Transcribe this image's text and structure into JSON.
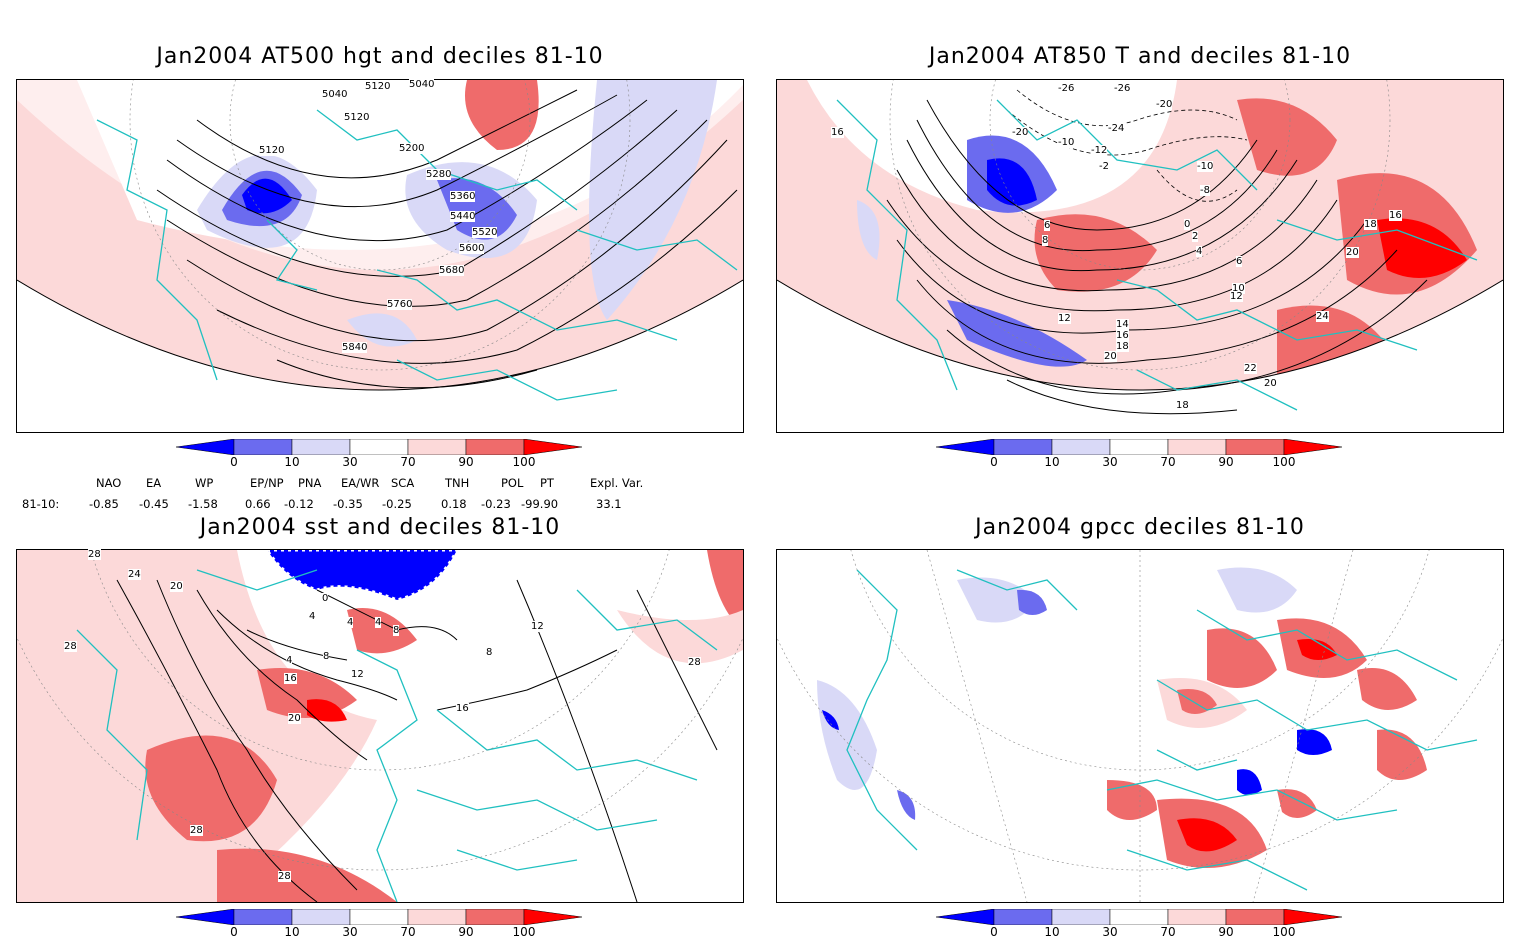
{
  "panels": [
    {
      "title": "Jan2004 AT500 hgt and deciles 81-10",
      "contour_labels": [
        "5040",
        "5040",
        "5120",
        "5120",
        "5120",
        "5200",
        "5280",
        "5360",
        "5440",
        "5520",
        "5600",
        "5680",
        "5760",
        "5840"
      ]
    },
    {
      "title": "Jan2004 AT850 T and deciles 81-10",
      "contour_labels": [
        "-26",
        "-26",
        "-24",
        "-20",
        "-20",
        "-12",
        "-10",
        "-10",
        "-8",
        "-2",
        "0",
        "2",
        "4",
        "6",
        "6",
        "8",
        "10",
        "12",
        "12",
        "14",
        "16",
        "16",
        "16",
        "18",
        "18",
        "18",
        "20",
        "20",
        "20",
        "22",
        "24"
      ]
    },
    {
      "title": "Jan2004 sst and deciles 81-10",
      "contour_labels": [
        "28",
        "24",
        "20",
        "28",
        "0",
        "4",
        "4",
        "4",
        "8",
        "4",
        "8",
        "12",
        "16",
        "16",
        "20",
        "28",
        "28",
        "8",
        "12",
        "28"
      ]
    },
    {
      "title": "Jan2004 gpcc deciles 81-10",
      "contour_labels": []
    }
  ],
  "colorbar": {
    "ticks": [
      "0",
      "10",
      "30",
      "70",
      "90",
      "100"
    ],
    "colors": [
      "#0000ff",
      "#6b6bef",
      "#d9d9f7",
      "#ffffff",
      "#fcd9d9",
      "#ef6b6b",
      "#ff0000"
    ]
  },
  "indices": {
    "headers": [
      "NAO",
      "EA",
      "WP",
      "EP/NP",
      "PNA",
      "EA/WR",
      "SCA",
      "TNH",
      "POL",
      "PT",
      "Expl. Var."
    ],
    "row_label": "81-10:",
    "values": [
      "-0.85",
      "-0.45",
      "-1.58",
      "0.66",
      "-0.12",
      "-0.35",
      "-0.25",
      "0.18",
      "-0.23",
      "-99.90",
      "33.1"
    ]
  }
}
